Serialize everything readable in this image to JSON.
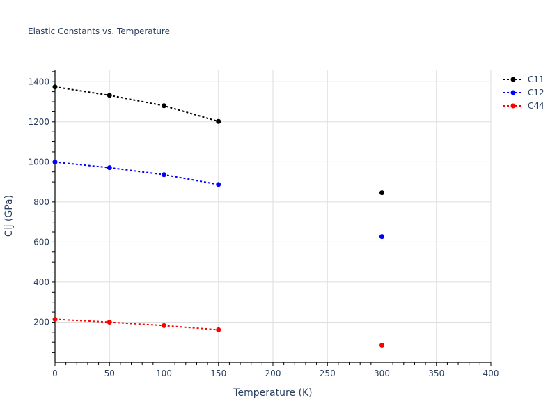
{
  "chart_data": {
    "type": "line",
    "title": "Elastic Constants vs. Temperature",
    "xlabel": "Temperature (K)",
    "ylabel": "Cij (GPa)",
    "xlim": [
      0,
      400
    ],
    "ylim": [
      0,
      1460
    ],
    "x_ticks": [
      0,
      50,
      100,
      150,
      200,
      250,
      300,
      350,
      400
    ],
    "y_ticks": [
      200,
      400,
      600,
      800,
      1000,
      1200,
      1400
    ],
    "grid": true,
    "legend_position": "top-right",
    "series": [
      {
        "name": "C11",
        "color": "#000000",
        "line_style": "dotted",
        "segments": [
          {
            "x": [
              0,
              50,
              100,
              150
            ],
            "y": [
              1374,
              1332,
              1280,
              1202
            ]
          },
          {
            "x": [
              300
            ],
            "y": [
              846
            ]
          }
        ]
      },
      {
        "name": "C12",
        "color": "#0000ff",
        "line_style": "dotted",
        "segments": [
          {
            "x": [
              0,
              50,
              100,
              150
            ],
            "y": [
              999,
              971,
              936,
              887
            ]
          },
          {
            "x": [
              300
            ],
            "y": [
              627
            ]
          }
        ]
      },
      {
        "name": "C44",
        "color": "#ff0000",
        "line_style": "dotted",
        "segments": [
          {
            "x": [
              0,
              50,
              100,
              150
            ],
            "y": [
              214,
              200,
              183,
              162
            ]
          },
          {
            "x": [
              300
            ],
            "y": [
              85
            ]
          }
        ]
      }
    ]
  }
}
